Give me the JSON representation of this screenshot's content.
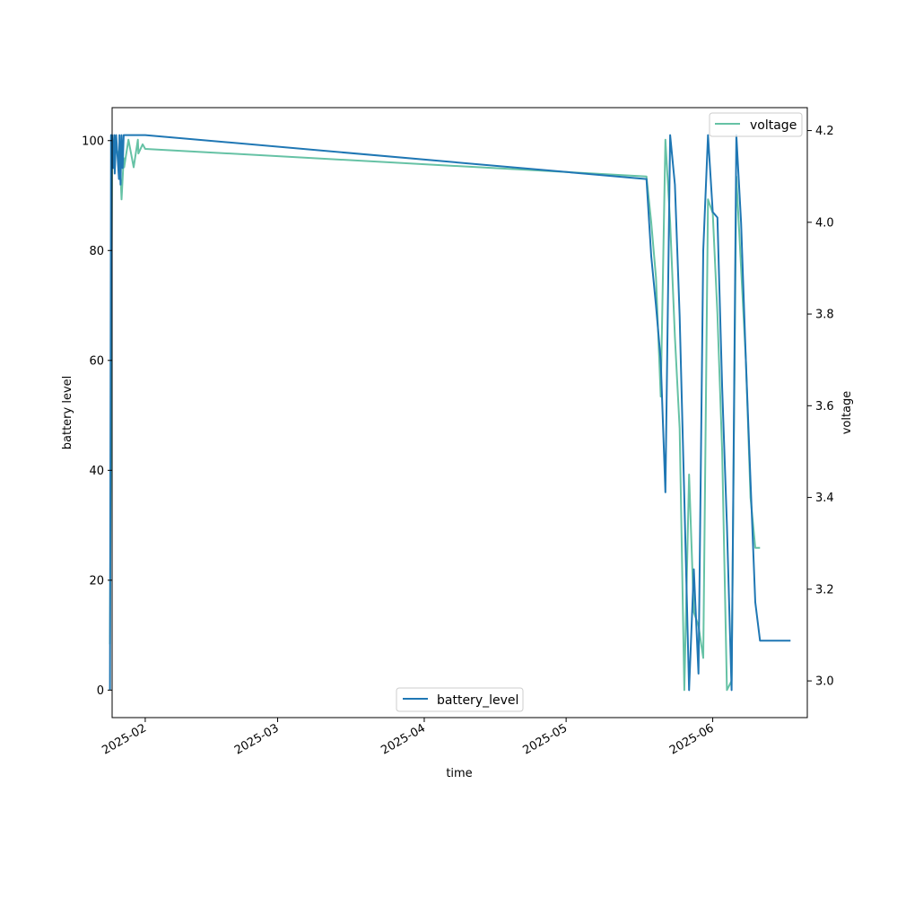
{
  "chart_data": {
    "type": "line",
    "xlabel": "time",
    "y1label": "battery level",
    "y2label": "voltage",
    "x_ticks": [
      "2025-02",
      "2025-03",
      "2025-04",
      "2025-05",
      "2025-06"
    ],
    "y1_ticks": [
      0,
      20,
      40,
      60,
      80,
      100
    ],
    "y2_ticks": [
      3.0,
      3.2,
      3.4,
      3.6,
      3.8,
      4.0,
      4.2
    ],
    "xlim": [
      "2025-01-25",
      "2025-06-21"
    ],
    "y1lim": [
      -5,
      106
    ],
    "y2lim": [
      2.92,
      4.25
    ],
    "legend_battery_position": "bottom-center",
    "legend_voltage_position": "top-right",
    "grid": false,
    "series": [
      {
        "name": "battery_level",
        "axis": "left",
        "color": "#1f77b4",
        "x": [
          "2025-01-25",
          "2025-01-25",
          "2025-01-25",
          "2025-01-25",
          "2025-01-25",
          "2025-01-26",
          "2025-01-26",
          "2025-01-26",
          "2025-01-26",
          "2025-01-27",
          "2025-01-27",
          "2025-01-27",
          "2025-01-27",
          "2025-01-27",
          "2025-01-28",
          "2025-01-28",
          "2025-01-28",
          "2025-01-28",
          "2025-01-28",
          "2025-01-29",
          "2025-01-29",
          "2025-01-30",
          "2025-01-30",
          "2025-01-31",
          "2025-01-31",
          "2025-02-01",
          "2025-05-18",
          "2025-05-19",
          "2025-05-20",
          "2025-05-21",
          "2025-05-22",
          "2025-05-23",
          "2025-05-24",
          "2025-05-25",
          "2025-05-26",
          "2025-05-27",
          "2025-05-28",
          "2025-05-29",
          "2025-05-30",
          "2025-05-31",
          "2025-06-01",
          "2025-06-02",
          "2025-06-03",
          "2025-06-04",
          "2025-06-05",
          "2025-06-06",
          "2025-06-07",
          "2025-06-08",
          "2025-06-09",
          "2025-06-10",
          "2025-06-11",
          "2025-06-12",
          "2025-06-13",
          "2025-06-14",
          "2025-06-15",
          "2025-06-16",
          "2025-06-17",
          "2025-06-17"
        ],
        "values": [
          0,
          101,
          101,
          95,
          101,
          94,
          101,
          97,
          93,
          101,
          92,
          101,
          95,
          101,
          101,
          101,
          101,
          101,
          101,
          101,
          101,
          101,
          101,
          101,
          101,
          101,
          93,
          79,
          70,
          60,
          36,
          101,
          92,
          68,
          35,
          0,
          22,
          3,
          80,
          101,
          87,
          86,
          55,
          30,
          0,
          101,
          85,
          60,
          38,
          16,
          9,
          9,
          9,
          9,
          9,
          9,
          9,
          9
        ]
      },
      {
        "name": "voltage",
        "axis": "right",
        "color": "#66c2a5",
        "x": [
          "2025-01-25",
          "2025-01-25",
          "2025-01-25",
          "2025-01-26",
          "2025-01-26",
          "2025-01-27",
          "2025-01-27",
          "2025-01-27",
          "2025-01-28",
          "2025-01-28",
          "2025-01-29",
          "2025-01-30",
          "2025-01-30",
          "2025-01-31",
          "2025-01-31",
          "2025-02-01",
          "2025-05-18",
          "2025-05-19",
          "2025-05-20",
          "2025-05-21",
          "2025-05-22",
          "2025-05-23",
          "2025-05-24",
          "2025-05-25",
          "2025-05-26",
          "2025-05-27",
          "2025-05-28",
          "2025-05-29",
          "2025-05-30",
          "2025-05-31",
          "2025-06-01",
          "2025-06-02",
          "2025-06-03",
          "2025-06-04",
          "2025-06-05",
          "2025-06-06",
          "2025-06-07",
          "2025-06-08",
          "2025-06-09",
          "2025-06-10",
          "2025-06-11"
        ],
        "values": [
          3.08,
          4.16,
          4.12,
          4.18,
          4.14,
          4.16,
          4.05,
          4.14,
          4.12,
          4.18,
          4.15,
          4.12,
          4.18,
          4.15,
          4.17,
          4.16,
          4.1,
          4.0,
          3.88,
          3.62,
          4.18,
          4.0,
          3.75,
          3.55,
          2.98,
          3.45,
          3.15,
          3.12,
          3.05,
          4.05,
          4.02,
          3.8,
          3.5,
          2.98,
          3.0,
          4.1,
          3.9,
          3.7,
          3.4,
          3.29,
          3.29
        ]
      }
    ]
  }
}
